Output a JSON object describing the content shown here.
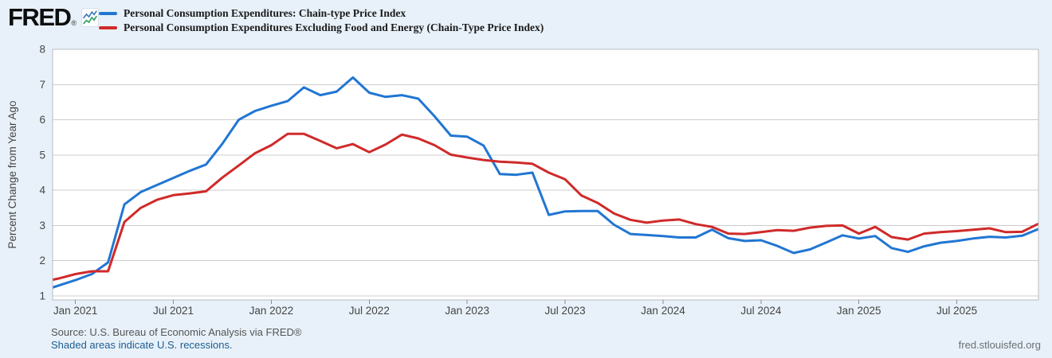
{
  "header": {
    "logo_text": "FRED",
    "logo_registered": "®",
    "logo_icon": "fred-sparkline-icon"
  },
  "chart_data": {
    "type": "line",
    "title": "",
    "ylabel": "Percent Change from Year Ago",
    "ylim": [
      1,
      8
    ],
    "yticks": [
      1,
      2,
      3,
      4,
      5,
      6,
      7,
      8
    ],
    "grid": true,
    "legend_position": "top-left",
    "x_unit": "month",
    "categories": [
      "2020-11",
      "2020-12",
      "2021-01",
      "2021-02",
      "2021-03",
      "2021-04",
      "2021-05",
      "2021-06",
      "2021-07",
      "2021-08",
      "2021-09",
      "2021-10",
      "2021-11",
      "2021-12",
      "2022-01",
      "2022-02",
      "2022-03",
      "2022-04",
      "2022-05",
      "2022-06",
      "2022-07",
      "2022-08",
      "2022-09",
      "2022-10",
      "2022-11",
      "2022-12",
      "2023-01",
      "2023-02",
      "2023-03",
      "2023-04",
      "2023-05",
      "2023-06",
      "2023-07",
      "2023-08",
      "2023-09",
      "2023-10",
      "2023-11",
      "2023-12",
      "2024-01",
      "2024-02",
      "2024-03",
      "2024-04",
      "2024-05",
      "2024-06",
      "2024-07",
      "2024-08",
      "2024-09",
      "2024-10",
      "2024-11",
      "2024-12",
      "2025-01",
      "2025-02",
      "2025-03",
      "2025-04",
      "2025-05",
      "2025-06",
      "2025-07",
      "2025-08",
      "2025-09",
      "2025-10",
      "2025-11",
      "2025-12"
    ],
    "xticks": [
      {
        "index": 2,
        "label": "Jan 2021"
      },
      {
        "index": 8,
        "label": "Jul 2021"
      },
      {
        "index": 14,
        "label": "Jan 2022"
      },
      {
        "index": 20,
        "label": "Jul 2022"
      },
      {
        "index": 26,
        "label": "Jan 2023"
      },
      {
        "index": 32,
        "label": "Jul 2023"
      },
      {
        "index": 38,
        "label": "Jan 2024"
      },
      {
        "index": 44,
        "label": "Jul 2024"
      },
      {
        "index": 50,
        "label": "Jan 2025"
      },
      {
        "index": 56,
        "label": "Jul 2025"
      }
    ],
    "series": [
      {
        "name": "Personal Consumption Expenditures: Chain-type Price Index",
        "color": "#2176d2",
        "values": [
          1.15,
          1.3,
          1.45,
          1.62,
          1.95,
          3.6,
          3.95,
          4.15,
          4.35,
          4.55,
          4.73,
          5.32,
          6.0,
          6.25,
          6.4,
          6.53,
          6.92,
          6.7,
          6.8,
          7.2,
          6.77,
          6.65,
          6.7,
          6.6,
          6.1,
          5.55,
          5.52,
          5.27,
          4.46,
          4.44,
          4.5,
          3.3,
          3.4,
          3.41,
          3.41,
          3.02,
          2.76,
          2.73,
          2.7,
          2.66,
          2.66,
          2.88,
          2.64,
          2.56,
          2.58,
          2.42,
          2.22,
          2.32,
          2.52,
          2.72,
          2.63,
          2.7,
          2.36,
          2.25,
          2.41,
          2.51,
          2.56,
          2.63,
          2.68,
          2.66,
          2.71,
          2.9
        ]
      },
      {
        "name": "Personal Consumption Expenditures Excluding Food and Energy (Chain-Type Price Index)",
        "color": "#d02a2a",
        "values": [
          1.4,
          1.5,
          1.62,
          1.7,
          1.7,
          3.1,
          3.5,
          3.73,
          3.86,
          3.91,
          3.97,
          4.36,
          4.7,
          5.05,
          5.28,
          5.6,
          5.6,
          5.4,
          5.19,
          5.31,
          5.08,
          5.3,
          5.58,
          5.47,
          5.28,
          5.01,
          4.93,
          4.86,
          4.81,
          4.79,
          4.75,
          4.5,
          4.31,
          3.85,
          3.64,
          3.34,
          3.16,
          3.08,
          3.14,
          3.17,
          3.04,
          2.96,
          2.77,
          2.76,
          2.81,
          2.87,
          2.85,
          2.94,
          2.99,
          3.0,
          2.77,
          2.96,
          2.67,
          2.6,
          2.77,
          2.81,
          2.84,
          2.88,
          2.92,
          2.81,
          2.82,
          3.05
        ]
      }
    ]
  },
  "footer": {
    "source": "Source: U.S. Bureau of Economic Analysis via FRED®",
    "recession_note": "Shaded areas indicate U.S. recessions.",
    "site": "fred.stlouisfed.org"
  },
  "colors": {
    "background": "#e8f1f9",
    "plot_background": "#ffffff",
    "gridline": "#cccccc",
    "plot_border": "#b7bcc1",
    "tick_mark": "#8a8a8a",
    "axis_text": "#454545",
    "legend_text": "#1a1a1a",
    "source_text": "#565656",
    "link_blue": "#1d5d90",
    "site_text": "#6b6f73"
  }
}
